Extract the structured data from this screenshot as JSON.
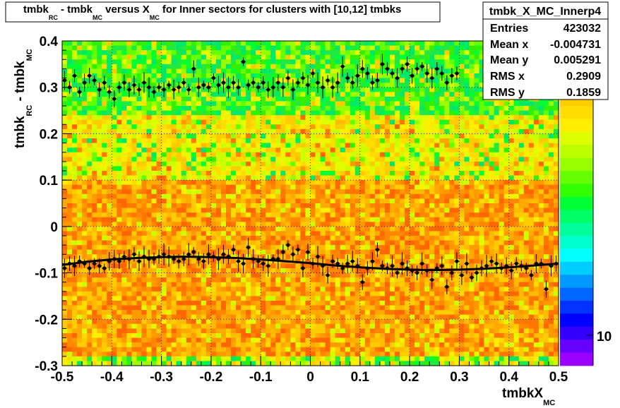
{
  "title": {
    "parts": [
      "tmbk",
      "RC",
      " - tmbk",
      "MC",
      " versus X",
      "MC",
      " for Inner sectors for clusters with [10,12] tmbks"
    ]
  },
  "stats": {
    "name": "tmbk_X_MC_Innerp4",
    "rows": [
      {
        "label": "Entries",
        "value": "423032"
      },
      {
        "label": "Mean x",
        "value": "-0.004731"
      },
      {
        "label": "Mean y",
        "value": "0.005291"
      },
      {
        "label": "RMS x",
        "value": "0.2909"
      },
      {
        "label": "RMS y",
        "value": "0.1859"
      }
    ]
  },
  "palette_label": "10",
  "chart_data": {
    "type": "heatmap",
    "xlabel": {
      "main": "tmbkX",
      "sub": "MC"
    },
    "ylabel": {
      "main": "tmbk",
      "sub1": "RC",
      "mid": " - tmbk",
      "sub2": "MC"
    },
    "xlim": [
      -0.5,
      0.5
    ],
    "ylim": [
      -0.3,
      0.4
    ],
    "xticks": [
      "-0.5",
      "-0.4",
      "-0.3",
      "-0.2",
      "-0.1",
      "0",
      "0.1",
      "0.2",
      "0.3",
      "0.4",
      "0.5"
    ],
    "yticks": [
      "-0.3",
      "-0.2",
      "-0.1",
      "0",
      "0.1",
      "0.2",
      "0.3",
      "0.4"
    ],
    "grid": true,
    "heatmap_description_bands": [
      {
        "y_range": [
          0.24,
          0.4
        ],
        "level": "green"
      },
      {
        "y_range": [
          0.1,
          0.24
        ],
        "level": "yellow"
      },
      {
        "y_range": [
          -0.28,
          0.1
        ],
        "level": "orange"
      },
      {
        "y_range": [
          -0.3,
          -0.28
        ],
        "level": "yellow-green"
      }
    ],
    "series": [
      {
        "kind": "points",
        "x": [
          -0.495,
          -0.485,
          -0.475,
          -0.465,
          -0.455,
          -0.445,
          -0.435,
          -0.425,
          -0.415,
          -0.405,
          -0.395,
          -0.385,
          -0.375,
          -0.365,
          -0.355,
          -0.345,
          -0.335,
          -0.325,
          -0.315,
          -0.305,
          -0.295,
          -0.285,
          -0.275,
          -0.265,
          -0.255,
          -0.245,
          -0.235,
          -0.225,
          -0.215,
          -0.205,
          -0.195,
          -0.185,
          -0.175,
          -0.165,
          -0.155,
          -0.145,
          -0.135,
          -0.125,
          -0.115,
          -0.105,
          -0.095,
          -0.085,
          -0.075,
          -0.065,
          -0.055,
          -0.045,
          -0.035,
          -0.025,
          -0.015,
          -0.005,
          0.005,
          0.015,
          0.025,
          0.035,
          0.045,
          0.055,
          0.065,
          0.075,
          0.085,
          0.095,
          0.105,
          0.115,
          0.125,
          0.135,
          0.145,
          0.155,
          0.165,
          0.175,
          0.185,
          0.195,
          0.205,
          0.215,
          0.225,
          0.235,
          0.245,
          0.255,
          0.265,
          0.275,
          0.285,
          0.295,
          0.305,
          0.315,
          0.325,
          0.335,
          0.345,
          0.355,
          0.365,
          0.375,
          0.385,
          0.395,
          0.405,
          0.415,
          0.425,
          0.435,
          0.445,
          0.455,
          0.465,
          0.475,
          0.485,
          0.495
        ],
        "y": [
          -0.09,
          -0.08,
          -0.085,
          -0.075,
          -0.08,
          -0.09,
          -0.08,
          -0.085,
          -0.09,
          -0.075,
          -0.07,
          -0.075,
          -0.065,
          -0.07,
          -0.06,
          -0.075,
          -0.065,
          -0.07,
          -0.07,
          -0.065,
          -0.06,
          -0.065,
          -0.07,
          -0.075,
          -0.07,
          -0.06,
          -0.055,
          -0.07,
          -0.075,
          -0.06,
          -0.065,
          -0.07,
          -0.06,
          -0.065,
          -0.05,
          -0.075,
          -0.08,
          -0.045,
          -0.07,
          -0.075,
          -0.08,
          -0.085,
          -0.07,
          -0.07,
          -0.055,
          -0.04,
          -0.06,
          -0.05,
          -0.09,
          -0.055,
          -0.08,
          -0.065,
          -0.085,
          -0.105,
          -0.075,
          -0.08,
          -0.09,
          -0.08,
          -0.075,
          -0.085,
          -0.12,
          -0.09,
          -0.075,
          -0.05,
          -0.085,
          -0.09,
          -0.085,
          -0.1,
          -0.08,
          -0.09,
          -0.095,
          -0.1,
          -0.08,
          -0.095,
          -0.115,
          -0.09,
          -0.085,
          -0.13,
          -0.1,
          -0.075,
          -0.105,
          -0.08,
          -0.11,
          -0.1,
          -0.09,
          -0.085,
          -0.075,
          -0.08,
          -0.09,
          -0.085,
          -0.095,
          -0.08,
          -0.085,
          -0.09,
          -0.105,
          -0.08,
          -0.08,
          -0.135,
          -0.085,
          -0.08
        ]
      },
      {
        "kind": "points",
        "x": [
          -0.495,
          -0.485,
          -0.475,
          -0.465,
          -0.455,
          -0.445,
          -0.435,
          -0.425,
          -0.415,
          -0.405,
          -0.395,
          -0.385,
          -0.375,
          -0.365,
          -0.355,
          -0.345,
          -0.335,
          -0.325,
          -0.315,
          -0.305,
          -0.295,
          -0.285,
          -0.275,
          -0.265,
          -0.255,
          -0.245,
          -0.235,
          -0.225,
          -0.215,
          -0.205,
          -0.195,
          -0.185,
          -0.175,
          -0.165,
          -0.155,
          -0.145,
          -0.135,
          -0.125,
          -0.115,
          -0.105,
          -0.095,
          -0.085,
          -0.075,
          -0.065,
          -0.055,
          -0.045,
          -0.035,
          -0.025,
          -0.015,
          -0.005,
          0.005,
          0.015,
          0.025,
          0.035,
          0.045,
          0.055,
          0.065,
          0.075,
          0.085,
          0.095,
          0.105,
          0.115,
          0.125,
          0.135,
          0.145,
          0.155,
          0.165,
          0.175,
          0.185,
          0.195,
          0.205,
          0.215,
          0.225,
          0.235,
          0.245,
          0.255,
          0.265,
          0.275,
          0.285,
          0.295
        ],
        "y": [
          0.315,
          0.3,
          0.325,
          0.29,
          0.31,
          0.325,
          0.315,
          0.295,
          0.31,
          0.29,
          0.275,
          0.3,
          0.31,
          0.295,
          0.305,
          0.295,
          0.31,
          0.3,
          0.29,
          0.3,
          0.295,
          0.305,
          0.295,
          0.3,
          0.31,
          0.295,
          0.34,
          0.3,
          0.305,
          0.3,
          0.32,
          0.305,
          0.31,
          0.3,
          0.31,
          0.3,
          0.355,
          0.305,
          0.31,
          0.3,
          0.31,
          0.295,
          0.3,
          0.31,
          0.3,
          0.32,
          0.295,
          0.31,
          0.32,
          0.305,
          0.33,
          0.31,
          0.3,
          0.315,
          0.3,
          0.31,
          0.345,
          0.32,
          0.31,
          0.325,
          0.34,
          0.33,
          0.31,
          0.315,
          0.35,
          0.34,
          0.33,
          0.32,
          0.34,
          0.35,
          0.325,
          0.34,
          0.345,
          0.33,
          0.32,
          0.34,
          0.33,
          0.31,
          0.325,
          0.33
        ]
      },
      {
        "kind": "fit-line",
        "x": [
          -0.5,
          -0.45,
          -0.4,
          -0.35,
          -0.3,
          -0.25,
          -0.2,
          -0.15,
          -0.1,
          -0.05,
          0,
          0.05,
          0.1,
          0.15,
          0.2,
          0.25,
          0.3,
          0.35,
          0.4,
          0.45,
          0.5
        ],
        "y": [
          -0.083,
          -0.076,
          -0.071,
          -0.068,
          -0.066,
          -0.065,
          -0.066,
          -0.068,
          -0.071,
          -0.075,
          -0.079,
          -0.084,
          -0.088,
          -0.091,
          -0.093,
          -0.094,
          -0.093,
          -0.091,
          -0.088,
          -0.084,
          -0.08
        ]
      }
    ]
  }
}
